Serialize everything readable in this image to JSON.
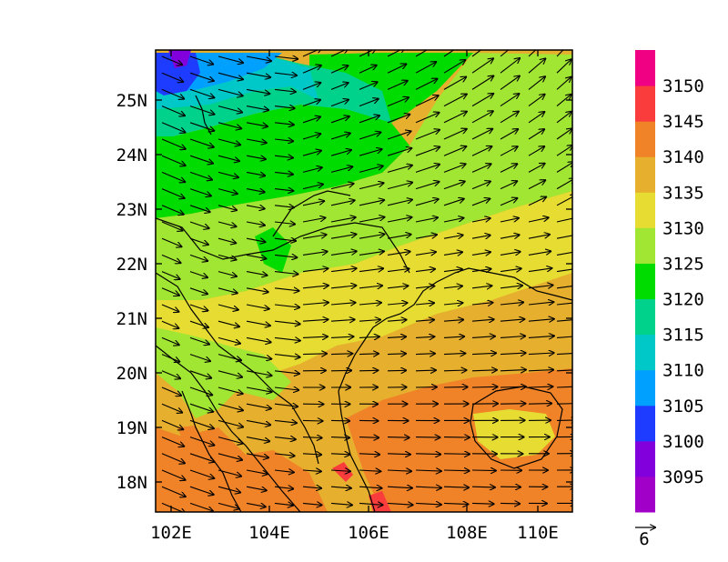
{
  "chart_data": {
    "type": "heatmap",
    "title": "",
    "longitude_ticks": [
      "102E",
      "104E",
      "106E",
      "108E",
      "110E"
    ],
    "latitude_ticks": [
      "18N",
      "19N",
      "20N",
      "21N",
      "22N",
      "23N",
      "24N",
      "25N"
    ],
    "lon_range": [
      101.7,
      110.9
    ],
    "lat_range": [
      17.4,
      25.9
    ],
    "colorbar": {
      "labels": [
        "3095",
        "3100",
        "3105",
        "3110",
        "3115",
        "3120",
        "3125",
        "3130",
        "3135",
        "3140",
        "3145",
        "3150"
      ],
      "colors": [
        "#a000c8",
        "#8200dc",
        "#1e3cff",
        "#00a0ff",
        "#00c8c8",
        "#00d28c",
        "#00dc00",
        "#a0e632",
        "#e6dc32",
        "#e6af2d",
        "#f08228",
        "#fa3c3c",
        "#f00082"
      ]
    },
    "vector_reference": {
      "label": "6",
      "magnitude": 6
    }
  }
}
